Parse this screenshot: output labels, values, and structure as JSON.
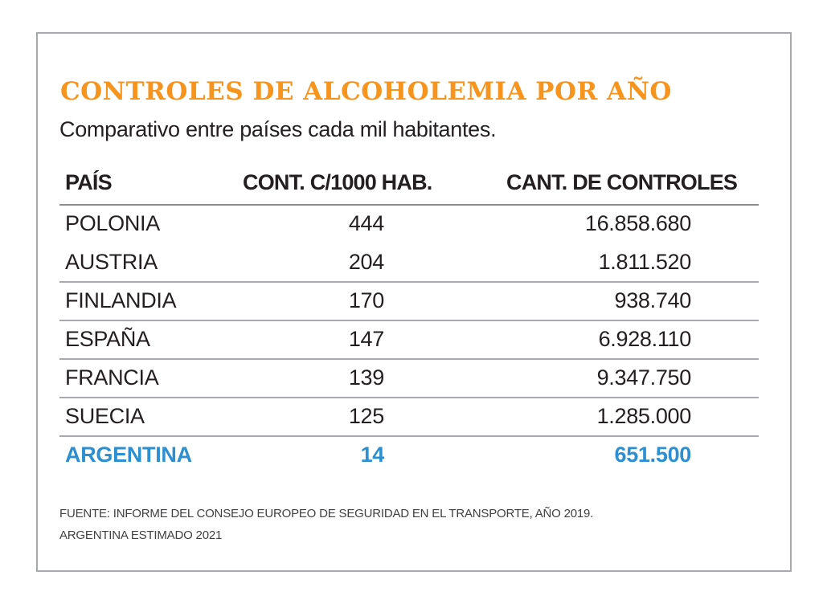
{
  "title": "CONTROLES DE ALCOHOLEMIA POR AÑO",
  "subtitle": "Comparativo entre países cada mil habitantes.",
  "colors": {
    "accent": "#f7941d",
    "highlight": "#2b8fd1",
    "rule": "#a7a9ac",
    "text": "#231f20"
  },
  "chart_data": {
    "type": "table",
    "title": "CONTROLES DE ALCOHOLEMIA POR AÑO",
    "subtitle": "Comparativo entre países cada mil habitantes.",
    "columns": [
      "PAÍS",
      "CONT. C/1000 HAB.",
      "CANT. DE CONTROLES"
    ],
    "rows": [
      {
        "country": "POLONIA",
        "rate": "444",
        "total": "16.858.680",
        "rule": false,
        "highlight": false
      },
      {
        "country": "AUSTRIA",
        "rate": "204",
        "total": "1.811.520",
        "rule": true,
        "highlight": false
      },
      {
        "country": "FINLANDIA",
        "rate": "170",
        "total": "938.740",
        "rule": true,
        "highlight": false
      },
      {
        "country": "ESPAÑA",
        "rate": "147",
        "total": "6.928.110",
        "rule": true,
        "highlight": false
      },
      {
        "country": "FRANCIA",
        "rate": "139",
        "total": "9.347.750",
        "rule": true,
        "highlight": false
      },
      {
        "country": "SUECIA",
        "rate": "125",
        "total": "1.285.000",
        "rule": true,
        "highlight": false
      },
      {
        "country": "ARGENTINA",
        "rate": "14",
        "total": "651.500",
        "rule": false,
        "highlight": true
      }
    ]
  },
  "source_lines": [
    "FUENTE: INFORME DEL CONSEJO EUROPEO DE SEGURIDAD EN EL TRANSPORTE, AÑO 2019.",
    "ARGENTINA ESTIMADO 2021"
  ]
}
